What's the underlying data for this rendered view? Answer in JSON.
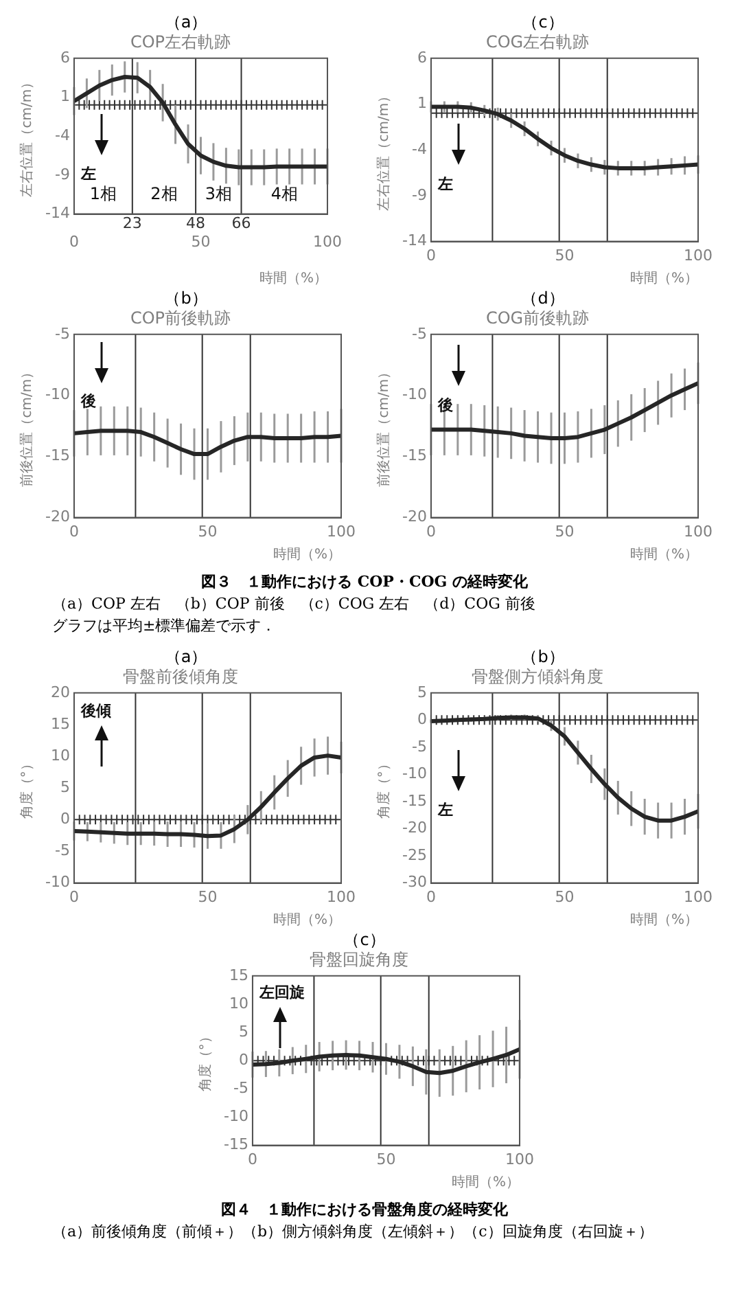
{
  "chart_data": [
    {
      "type": "line",
      "subtitle": "（a）",
      "title": "COP左右軌跡",
      "xlabel": "時間（%）",
      "ylabel": "左右位置（cm/m）",
      "xlim": [
        0,
        100
      ],
      "xticks": [
        0,
        50,
        100
      ],
      "ylim": [
        -14,
        6
      ],
      "yticks": [
        -14,
        -9,
        -4,
        1,
        6
      ],
      "color": "#262626",
      "x": [
        0,
        5,
        10,
        15,
        20,
        25,
        30,
        35,
        40,
        45,
        50,
        55,
        60,
        65,
        70,
        75,
        80,
        85,
        90,
        95,
        100
      ],
      "values": [
        0.5,
        1.5,
        2.5,
        3.2,
        3.6,
        3.5,
        2.3,
        0.3,
        -2.5,
        -5,
        -6.5,
        -7.3,
        -7.8,
        -8,
        -8,
        -8,
        -7.9,
        -7.9,
        -7.9,
        -7.9,
        -7.9
      ],
      "errors": [
        1.8,
        1.9,
        2,
        2,
        2,
        2,
        2.2,
        2.4,
        2.5,
        2.5,
        2.4,
        2.4,
        2.3,
        2.3,
        2.3,
        2.3,
        2.3,
        2.3,
        2.3,
        2.3,
        2.3
      ],
      "ref_lines": [
        {
          "axis": "y",
          "value": 0
        },
        {
          "axis": "x",
          "value": 23,
          "label": "23"
        },
        {
          "axis": "x",
          "value": 48,
          "label": "48"
        },
        {
          "axis": "x",
          "value": 66,
          "label": "66"
        }
      ],
      "annotations": [
        "左",
        "1相",
        "2相",
        "3相",
        "4相"
      ]
    },
    {
      "type": "line",
      "subtitle": "（c）",
      "title": "COG左右軌跡",
      "xlabel": "時間（%）",
      "ylabel": "左右位置（cm/m）",
      "xlim": [
        0,
        100
      ],
      "xticks": [
        0,
        50,
        100
      ],
      "ylim": [
        -14,
        6
      ],
      "yticks": [
        -14,
        -9,
        -4,
        1,
        6
      ],
      "color": "#262626",
      "x": [
        0,
        5,
        10,
        15,
        20,
        25,
        30,
        35,
        40,
        45,
        50,
        55,
        60,
        65,
        70,
        75,
        80,
        85,
        90,
        95,
        100
      ],
      "values": [
        0.7,
        0.7,
        0.7,
        0.6,
        0.3,
        -0.1,
        -0.8,
        -1.7,
        -2.8,
        -3.8,
        -4.6,
        -5.2,
        -5.6,
        -5.9,
        -6,
        -6,
        -6,
        -5.9,
        -5.8,
        -5.7,
        -5.6
      ],
      "errors": [
        0.6,
        0.6,
        0.6,
        0.6,
        0.6,
        0.7,
        0.8,
        0.8,
        0.8,
        0.8,
        0.8,
        0.8,
        0.8,
        0.8,
        0.8,
        0.8,
        0.8,
        0.9,
        0.9,
        1,
        1
      ],
      "ref_lines": [
        {
          "axis": "y",
          "value": 0
        },
        {
          "axis": "x",
          "value": 23
        },
        {
          "axis": "x",
          "value": 48
        },
        {
          "axis": "x",
          "value": 66
        }
      ],
      "annotations": [
        "左"
      ]
    },
    {
      "type": "line",
      "subtitle": "（b）",
      "title": "COP前後軌跡",
      "xlabel": "時間（%）",
      "ylabel": "前後位置（cm/m）",
      "xlim": [
        0,
        100
      ],
      "xticks": [
        0,
        50,
        100
      ],
      "ylim": [
        -20,
        -5
      ],
      "yticks": [
        -20,
        -15,
        -10,
        -5
      ],
      "color": "#262626",
      "x": [
        0,
        5,
        10,
        15,
        20,
        25,
        30,
        35,
        40,
        45,
        50,
        55,
        60,
        65,
        70,
        75,
        80,
        85,
        90,
        95,
        100
      ],
      "values": [
        -13.1,
        -13,
        -12.9,
        -12.9,
        -12.9,
        -13,
        -13.4,
        -13.9,
        -14.4,
        -14.8,
        -14.8,
        -14.2,
        -13.7,
        -13.4,
        -13.4,
        -13.5,
        -13.5,
        -13.5,
        -13.4,
        -13.4,
        -13.3
      ],
      "errors": [
        1.9,
        1.9,
        2,
        2,
        2,
        2,
        2,
        2,
        2.1,
        2.1,
        2.1,
        2.1,
        2,
        2,
        2,
        2,
        2,
        2,
        2.1,
        2.1,
        2.2
      ],
      "ref_lines": [
        {
          "axis": "x",
          "value": 23
        },
        {
          "axis": "x",
          "value": 48
        },
        {
          "axis": "x",
          "value": 66
        }
      ],
      "annotations": [
        "後"
      ]
    },
    {
      "type": "line",
      "subtitle": "（d）",
      "title": "COG前後軌跡",
      "xlabel": "時間（%）",
      "ylabel": "前後位置（cm/m）",
      "xlim": [
        0,
        100
      ],
      "xticks": [
        0,
        50,
        100
      ],
      "ylim": [
        -20,
        -5
      ],
      "yticks": [
        -20,
        -15,
        -10,
        -5
      ],
      "color": "#262626",
      "x": [
        0,
        5,
        10,
        15,
        20,
        25,
        30,
        35,
        40,
        45,
        50,
        55,
        60,
        65,
        70,
        75,
        80,
        85,
        90,
        95,
        100
      ],
      "values": [
        -12.8,
        -12.8,
        -12.8,
        -12.8,
        -12.9,
        -13,
        -13.1,
        -13.3,
        -13.4,
        -13.5,
        -13.5,
        -13.4,
        -13.1,
        -12.8,
        -12.3,
        -11.8,
        -11.2,
        -10.6,
        -10,
        -9.5,
        -9
      ],
      "errors": [
        2.1,
        2.1,
        2.1,
        2.1,
        2.1,
        2.1,
        2.1,
        2.1,
        2.1,
        2.1,
        2.1,
        2.1,
        2,
        2,
        1.9,
        1.9,
        1.8,
        1.8,
        1.8,
        1.7,
        1.7
      ],
      "ref_lines": [
        {
          "axis": "x",
          "value": 23
        },
        {
          "axis": "x",
          "value": 48
        },
        {
          "axis": "x",
          "value": 66
        }
      ],
      "annotations": [
        "後"
      ]
    },
    {
      "type": "other",
      "annotations": [
        "図３　１動作における COP・COG の経時変化",
        "（a）COP 左右　（b）COP 前後　（c）COG 左右　（d）COG 前後",
        "グラフは平均±標準偏差で示す．"
      ]
    },
    {
      "type": "line",
      "subtitle": "（a）",
      "title": "骨盤前後傾角度",
      "xlabel": "時間（%）",
      "ylabel": "角度（°）",
      "xlim": [
        0,
        100
      ],
      "xticks": [
        0,
        50,
        100
      ],
      "ylim": [
        -10,
        20
      ],
      "yticks": [
        -10,
        -5,
        0,
        5,
        10,
        15,
        20
      ],
      "color": "#262626",
      "x": [
        0,
        5,
        10,
        15,
        20,
        25,
        30,
        35,
        40,
        45,
        50,
        55,
        60,
        65,
        70,
        75,
        80,
        85,
        90,
        95,
        100
      ],
      "values": [
        -1.8,
        -1.9,
        -2,
        -2.1,
        -2.2,
        -2.2,
        -2.2,
        -2.3,
        -2.3,
        -2.4,
        -2.6,
        -2.5,
        -1.5,
        0,
        2,
        4.3,
        6.5,
        8.5,
        9.8,
        10.1,
        9.8
      ],
      "errors": [
        1.5,
        1.5,
        1.6,
        1.7,
        1.8,
        1.8,
        1.9,
        2,
        2,
        2,
        2,
        2.1,
        2.2,
        2.3,
        2.5,
        2.7,
        2.9,
        3,
        3,
        3,
        2.5
      ],
      "ref_lines": [
        {
          "axis": "y",
          "value": 0
        },
        {
          "axis": "x",
          "value": 23
        },
        {
          "axis": "x",
          "value": 48
        },
        {
          "axis": "x",
          "value": 66
        }
      ],
      "annotations": [
        "後傾"
      ]
    },
    {
      "type": "line",
      "subtitle": "（b）",
      "title": "骨盤側方傾斜角度",
      "xlabel": "時間（%）",
      "ylabel": "角度（°）",
      "xlim": [
        0,
        100
      ],
      "xticks": [
        0,
        50,
        100
      ],
      "ylim": [
        -30,
        5
      ],
      "yticks": [
        -30,
        -25,
        -20,
        -15,
        -10,
        -5,
        0,
        5
      ],
      "color": "#262626",
      "x": [
        0,
        5,
        10,
        15,
        20,
        25,
        30,
        35,
        40,
        45,
        50,
        55,
        60,
        65,
        70,
        75,
        80,
        85,
        90,
        95,
        100
      ],
      "values": [
        -0.2,
        -0.1,
        0,
        0.1,
        0.2,
        0.4,
        0.5,
        0.5,
        0.3,
        -1,
        -3,
        -6,
        -9,
        -11.8,
        -14.3,
        -16.3,
        -17.8,
        -18.5,
        -18.5,
        -17.8,
        -16.8
      ],
      "errors": [
        0.3,
        0.3,
        0.3,
        0.4,
        0.4,
        0.5,
        0.5,
        0.5,
        0.6,
        1,
        1.7,
        2.2,
        2.6,
        2.9,
        3.1,
        3.2,
        3.3,
        3.3,
        3.3,
        3.3,
        3.2
      ],
      "ref_lines": [
        {
          "axis": "y",
          "value": 0
        },
        {
          "axis": "x",
          "value": 23
        },
        {
          "axis": "x",
          "value": 48
        },
        {
          "axis": "x",
          "value": 66
        }
      ],
      "annotations": [
        "左"
      ]
    },
    {
      "type": "line",
      "subtitle": "（c）",
      "title": "骨盤回旋角度",
      "xlabel": "時間（%）",
      "ylabel": "角度（°）",
      "xlim": [
        0,
        100
      ],
      "xticks": [
        0,
        50,
        100
      ],
      "ylim": [
        -15,
        15
      ],
      "yticks": [
        -15,
        -10,
        -5,
        0,
        5,
        10,
        15
      ],
      "color": "#262626",
      "x": [
        0,
        5,
        10,
        15,
        20,
        25,
        30,
        35,
        40,
        45,
        50,
        55,
        60,
        65,
        70,
        75,
        80,
        85,
        90,
        95,
        100
      ],
      "values": [
        -0.7,
        -0.6,
        -0.4,
        0,
        0.3,
        0.7,
        0.9,
        1,
        0.9,
        0.6,
        0.3,
        -0.2,
        -1,
        -2,
        -2.2,
        -1.8,
        -1,
        -0.3,
        0.3,
        1,
        2
      ],
      "errors": [
        2.3,
        2.3,
        2.4,
        2.4,
        2.5,
        2.6,
        2.6,
        2.6,
        2.6,
        2.7,
        2.8,
        3,
        3.5,
        4,
        4.2,
        4.4,
        4.6,
        4.8,
        5,
        5,
        5.2
      ],
      "ref_lines": [
        {
          "axis": "y",
          "value": 0
        },
        {
          "axis": "x",
          "value": 23
        },
        {
          "axis": "x",
          "value": 48
        },
        {
          "axis": "x",
          "value": 66
        }
      ],
      "annotations": [
        "左回旋"
      ]
    },
    {
      "type": "other",
      "annotations": [
        "図４　１動作における骨盤角度の経時変化",
        "（a）前後傾角度（前傾＋）（b）側方傾斜角度（左傾斜＋）（c）回旋角度（右回旋＋）"
      ]
    }
  ]
}
